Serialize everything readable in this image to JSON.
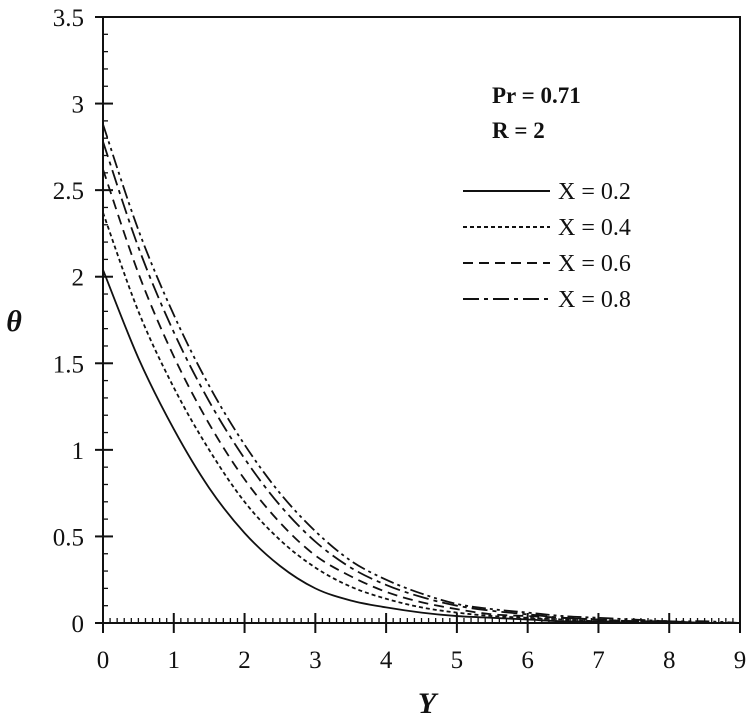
{
  "chart_data": {
    "type": "line",
    "xlabel": "Y",
    "ylabel": "θ",
    "xlim": [
      0,
      9
    ],
    "ylim": [
      0,
      3.5
    ],
    "xticks": [
      "0",
      "1",
      "2",
      "3",
      "4",
      "5",
      "6",
      "7",
      "8",
      "9"
    ],
    "yticks": [
      "0",
      "0.5",
      "1",
      "1.5",
      "2",
      "2.5",
      "3",
      "3.5"
    ],
    "grid": false,
    "legend_position": "top-right",
    "annotations": [
      "Pr = 0.71",
      "R = 2"
    ],
    "x": [
      0,
      0.5,
      1,
      1.5,
      2,
      2.5,
      3,
      3.5,
      4,
      4.5,
      5,
      5.5,
      6,
      6.5,
      7,
      7.5,
      8,
      8.5,
      9
    ],
    "series": [
      {
        "name": "X = 0.2",
        "dash": "solid",
        "values": [
          2.04,
          1.53,
          1.12,
          0.78,
          0.52,
          0.33,
          0.2,
          0.13,
          0.09,
          0.06,
          0.04,
          0.03,
          0.02,
          0.01,
          0.01,
          0.0,
          0.0,
          0.0,
          0.0
        ]
      },
      {
        "name": "X = 0.4",
        "dash": "dotted",
        "values": [
          2.37,
          1.8,
          1.36,
          1.0,
          0.7,
          0.48,
          0.32,
          0.21,
          0.14,
          0.09,
          0.06,
          0.04,
          0.03,
          0.02,
          0.01,
          0.01,
          0.0,
          0.0,
          0.0
        ]
      },
      {
        "name": "X = 0.6",
        "dash": "dashed",
        "values": [
          2.62,
          2.02,
          1.54,
          1.15,
          0.83,
          0.58,
          0.39,
          0.27,
          0.18,
          0.12,
          0.08,
          0.05,
          0.04,
          0.03,
          0.02,
          0.01,
          0.01,
          0.0,
          0.0
        ]
      },
      {
        "name": "X = 0.8",
        "dash": "dash-dot",
        "values": [
          2.78,
          2.17,
          1.68,
          1.28,
          0.95,
          0.68,
          0.47,
          0.32,
          0.22,
          0.15,
          0.1,
          0.07,
          0.05,
          0.03,
          0.02,
          0.01,
          0.01,
          0.0,
          0.0
        ]
      },
      {
        "name": "",
        "dash": "dash-dot-dot",
        "values": [
          2.88,
          2.27,
          1.78,
          1.37,
          1.03,
          0.75,
          0.53,
          0.36,
          0.25,
          0.17,
          0.11,
          0.08,
          0.06,
          0.04,
          0.03,
          0.02,
          0.01,
          0.01,
          0.0
        ]
      }
    ]
  }
}
